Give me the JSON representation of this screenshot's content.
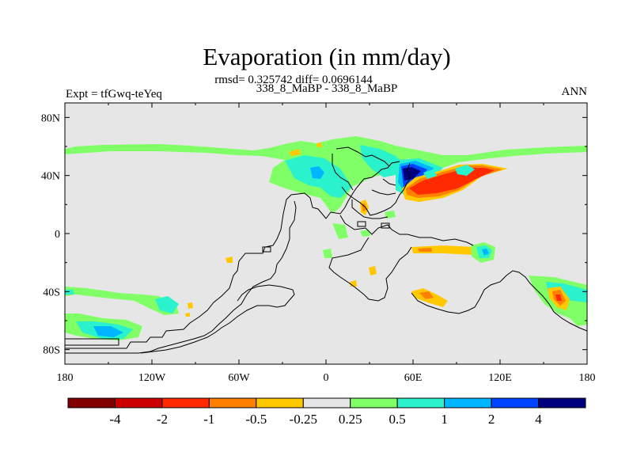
{
  "title": "Evaporation (in mm/day)",
  "stats": "rmsd= 0.325742 diff= 0.0696144",
  "case": "338_8_MaBP - 338_8_MaBP",
  "left_string": "Expt = tfGwq-teYeq",
  "right_string": "ANN",
  "xaxis": {
    "ticks": [
      "180",
      "120W",
      "60W",
      "0",
      "60E",
      "120E",
      "180"
    ],
    "values": [
      -180,
      -120,
      -60,
      0,
      60,
      120,
      180
    ]
  },
  "yaxis": {
    "ticks": [
      "80N",
      "40N",
      "0",
      "40S",
      "80S"
    ],
    "values": [
      80,
      40,
      0,
      -40,
      -80
    ]
  },
  "colorbar": {
    "labels": [
      "-4",
      "-2",
      "-1",
      "-0.5",
      "-0.25",
      "0.25",
      "0.5",
      "1",
      "2",
      "4"
    ],
    "colors": [
      "#800000",
      "#cc0000",
      "#ff2a00",
      "#ff7f00",
      "#ffc800",
      "#e6e6e6",
      "#80ff66",
      "#2af2cc",
      "#00b7ff",
      "#0044ff",
      "#00007f"
    ]
  }
}
